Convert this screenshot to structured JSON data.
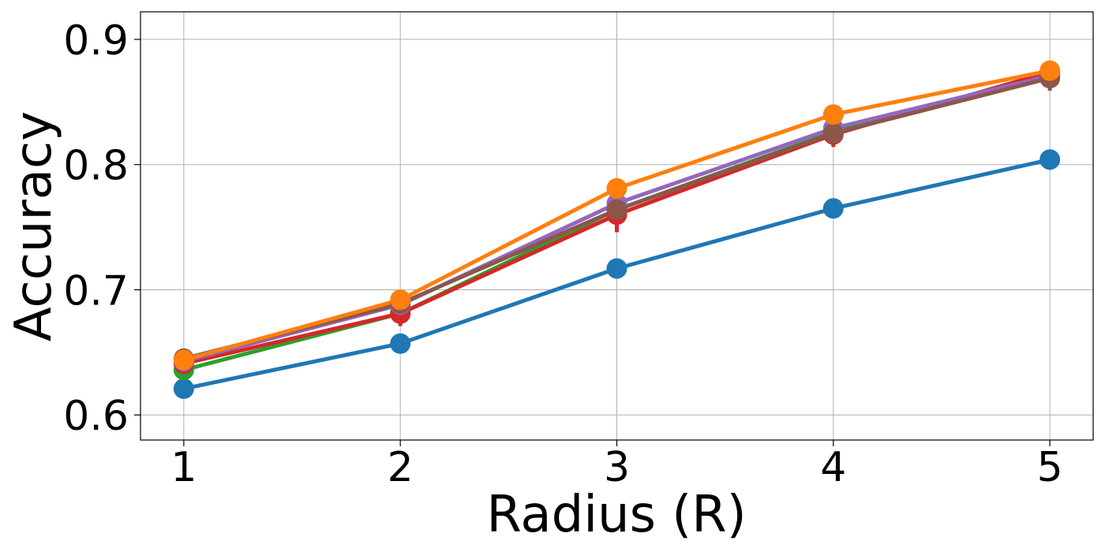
{
  "chart_data": {
    "type": "line",
    "xlabel": "Radius (R)",
    "ylabel": "Accuracy",
    "x": [
      1,
      2,
      3,
      4,
      5
    ],
    "x_ticks": [
      "1",
      "2",
      "3",
      "4",
      "5"
    ],
    "y_ticks": [
      "0.6",
      "0.7",
      "0.8",
      "0.9"
    ],
    "xlim": [
      0.8,
      5.2
    ],
    "ylim": [
      0.58,
      0.922
    ],
    "grid": true,
    "legend": false,
    "series": [
      {
        "color": "#1f77b4",
        "values": [
          0.621,
          0.657,
          0.717,
          0.765,
          0.804
        ],
        "err": [
          0.003,
          0.004,
          0.004,
          0.004,
          0.004
        ]
      },
      {
        "color": "#2ca02c",
        "values": [
          0.636,
          0.681,
          0.764,
          0.826,
          0.872
        ],
        "err": [
          0.003,
          0.004,
          0.005,
          0.005,
          0.005
        ]
      },
      {
        "color": "#d62728",
        "values": [
          0.641,
          0.681,
          0.76,
          0.824,
          0.874
        ],
        "err": [
          0.004,
          0.01,
          0.014,
          0.01,
          0.008
        ]
      },
      {
        "color": "#9467bd",
        "values": [
          0.643,
          0.688,
          0.769,
          0.829,
          0.871
        ],
        "err": [
          0.003,
          0.004,
          0.005,
          0.005,
          0.006
        ]
      },
      {
        "color": "#8c564b",
        "values": [
          0.645,
          0.689,
          0.764,
          0.825,
          0.869
        ],
        "err": [
          0.003,
          0.004,
          0.005,
          0.006,
          0.01
        ]
      },
      {
        "color": "#ff7f0e",
        "values": [
          0.644,
          0.692,
          0.781,
          0.84,
          0.875
        ],
        "err": [
          0.003,
          0.004,
          0.005,
          0.008,
          0.008
        ]
      }
    ]
  }
}
